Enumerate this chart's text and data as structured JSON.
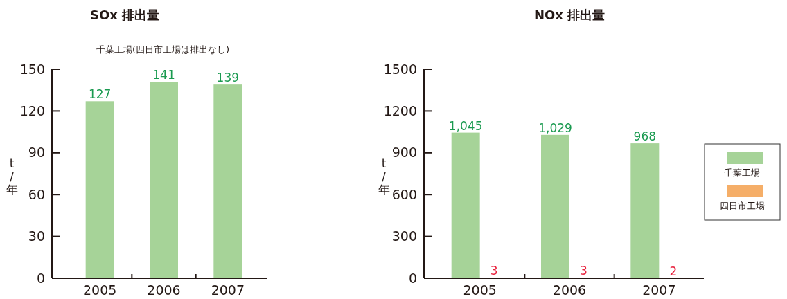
{
  "chart_data": [
    {
      "type": "bar",
      "title": "SOx 排出量",
      "subtitle": "千葉工場(四日市工場は排出なし)",
      "ylabel": "t/年",
      "categories": [
        "2005",
        "2006",
        "2007"
      ],
      "values": [
        127,
        141,
        139
      ],
      "color": "#a6d398",
      "data_labels": true,
      "ylim": [
        0,
        150
      ],
      "yticks": [
        0,
        30,
        60,
        90,
        120,
        150
      ],
      "grid": false,
      "legend": false
    },
    {
      "type": "bar",
      "title": "NOx 排出量",
      "ylabel": "t/年",
      "categories": [
        "2005",
        "2006",
        "2007"
      ],
      "series": [
        {
          "name": "千葉工場",
          "color": "#a6d398",
          "values": [
            1045,
            1029,
            968
          ],
          "value_labels": [
            "1,045",
            "1,029",
            "968"
          ]
        },
        {
          "name": "四日市工場",
          "color": "#f5ae68",
          "values": [
            3,
            3,
            2
          ],
          "value_labels": [
            "3",
            "3",
            "2"
          ]
        }
      ],
      "ylim": [
        0,
        1500
      ],
      "yticks": [
        0,
        300,
        600,
        900,
        1200,
        1500
      ],
      "grid": false,
      "legend": "right"
    }
  ]
}
